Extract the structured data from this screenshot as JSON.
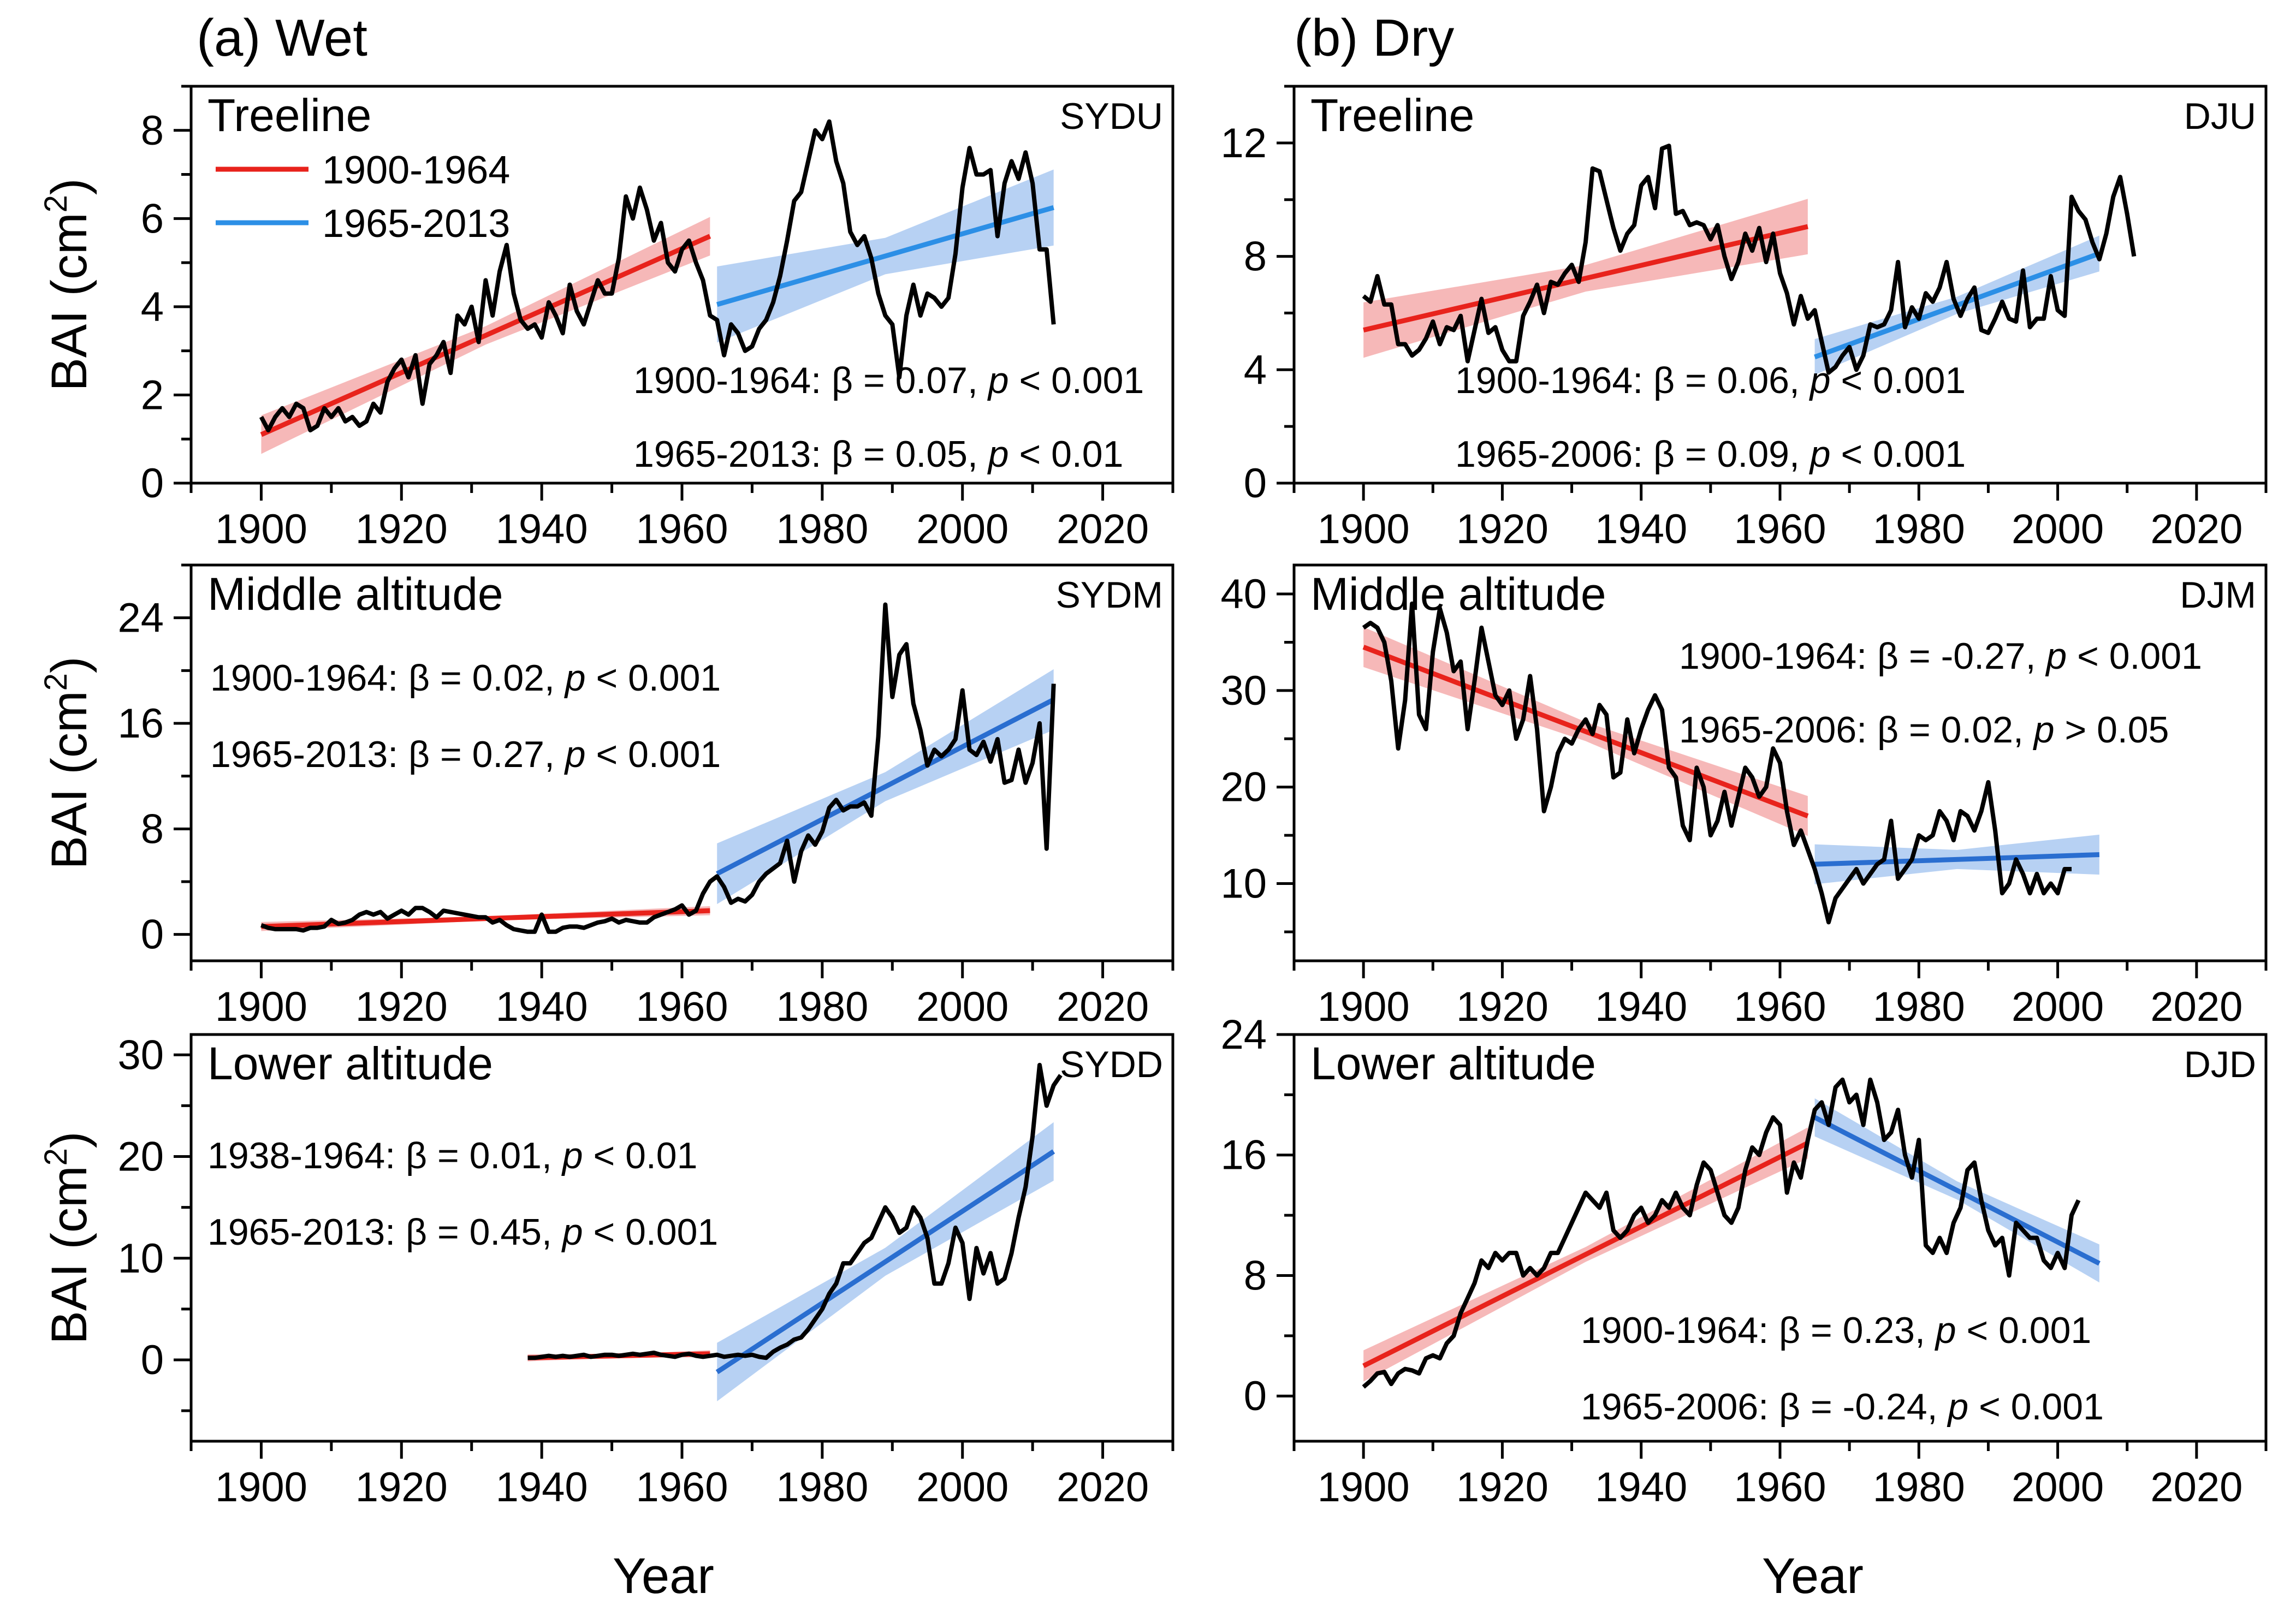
{
  "figure": {
    "title_wet": "(a) Wet",
    "title_dry": "(b) Dry",
    "ylabel_main": "BAI (cm",
    "ylabel_sup": "2",
    "ylabel_end": ")",
    "xlabel": "Year"
  },
  "legend": [
    {
      "label": "1900-1964",
      "color": "#e8231c"
    },
    {
      "label": "1965-2013",
      "color": "#2c8fe6"
    }
  ],
  "colors": {
    "early": "#e8231c",
    "late_light": "#2c8fe6",
    "late_dark": "#2a6ed0",
    "series": "#000000",
    "early_band": "#f3a0a0",
    "late_band": "#9fc1ef"
  },
  "chart_data": [
    {
      "type": "line",
      "panel": "wet-treeline",
      "subtitle": "Treeline",
      "code": "SYDU",
      "xlim": [
        1890,
        2030
      ],
      "ylim": [
        0,
        9
      ],
      "xticks": [
        1900,
        1920,
        1940,
        1960,
        1980,
        2000,
        2020
      ],
      "yticks": [
        0,
        2,
        4,
        6,
        8
      ],
      "xlabel": "",
      "ylabel": "BAI (cm2)",
      "series": [
        {
          "x_start": 1900,
          "values": [
            1.5,
            1.2,
            1.5,
            1.7,
            1.5,
            1.8,
            1.7,
            1.2,
            1.3,
            1.7,
            1.5,
            1.7,
            1.4,
            1.5,
            1.3,
            1.4,
            1.8,
            1.6,
            2.3,
            2.6,
            2.8,
            2.4,
            2.9,
            1.8,
            2.7,
            2.9,
            3.2,
            2.5,
            3.8,
            3.6,
            4.0,
            3.2,
            4.6,
            3.8,
            4.8,
            5.4,
            4.3,
            3.7,
            3.5,
            3.6,
            3.3,
            4.1,
            3.8,
            3.4,
            4.5,
            3.9,
            3.6,
            4.1,
            4.6,
            4.3,
            4.3,
            5.1,
            6.5,
            6.0,
            6.7,
            6.2,
            5.5,
            5.9,
            5.0,
            4.8,
            5.3,
            5.5,
            5.0,
            4.6,
            3.8,
            3.7,
            2.9,
            3.6,
            3.4,
            3.0,
            3.1,
            3.5,
            3.7,
            4.1,
            4.7,
            5.5,
            6.4,
            6.6,
            7.3,
            8.0,
            7.8,
            8.2,
            7.3,
            6.8,
            5.7,
            5.4,
            5.6,
            5.1,
            4.3,
            3.8,
            3.6,
            2.4,
            3.8,
            4.5,
            3.8,
            4.3,
            4.2,
            4.0,
            4.2,
            5.2,
            6.7,
            7.6,
            7.0,
            7.0,
            7.1,
            5.6,
            6.8,
            7.3,
            6.9,
            7.5,
            6.8,
            5.3,
            5.3,
            3.6
          ]
        }
      ],
      "fits": [
        {
          "period": "1900-1964",
          "x": [
            1900,
            1964
          ],
          "y": [
            1.1,
            5.6
          ],
          "band_halfwidth": 0.38
        },
        {
          "period": "1965-2013",
          "x": [
            1965,
            2013
          ],
          "y": [
            4.05,
            6.25
          ],
          "band_halfwidth": 0.75
        }
      ],
      "annotations": [
        {
          "period": "1900-1964",
          "beta": "β = 0.07, ",
          "p": "p",
          "rel": " < 0.001"
        },
        {
          "period": "1965-2013",
          "beta": "β = 0.05, ",
          "p": "p",
          "rel": " < 0.01"
        }
      ]
    },
    {
      "type": "line",
      "panel": "dry-treeline",
      "subtitle": "Treeline",
      "code": "DJU",
      "xlim": [
        1890,
        2030
      ],
      "ylim": [
        0,
        14
      ],
      "xticks": [
        1900,
        1920,
        1940,
        1960,
        1980,
        2000,
        2020
      ],
      "yticks": [
        0,
        4,
        8,
        12
      ],
      "xlabel": "",
      "ylabel": "",
      "series": [
        {
          "x_start": 1900,
          "values": [
            6.6,
            6.4,
            7.3,
            6.3,
            6.3,
            4.9,
            4.9,
            4.5,
            4.7,
            5.1,
            5.7,
            4.9,
            5.5,
            5.4,
            5.9,
            4.3,
            5.4,
            6.5,
            5.3,
            5.5,
            4.7,
            4.3,
            4.3,
            5.9,
            6.4,
            7.0,
            6.0,
            7.1,
            7.0,
            7.4,
            7.7,
            7.1,
            8.5,
            11.1,
            11.0,
            10.0,
            9.0,
            8.2,
            8.8,
            9.1,
            10.5,
            10.8,
            9.7,
            11.8,
            11.9,
            9.5,
            9.6,
            9.1,
            9.2,
            9.1,
            8.6,
            9.1,
            8.0,
            7.2,
            7.8,
            8.8,
            8.2,
            9.0,
            7.8,
            8.8,
            7.4,
            6.7,
            5.6,
            6.6,
            5.8,
            6.1,
            5.0,
            3.9,
            4.1,
            4.5,
            4.8,
            4.0,
            4.5,
            5.6,
            5.5,
            5.6,
            6.1,
            7.8,
            5.5,
            6.2,
            5.8,
            6.7,
            6.4,
            6.9,
            7.8,
            6.5,
            5.9,
            6.5,
            6.9,
            5.4,
            5.3,
            5.8,
            6.4,
            5.8,
            5.7,
            7.5,
            5.5,
            5.8,
            5.8,
            7.3,
            6.1,
            5.9,
            10.1,
            9.6,
            9.3,
            8.5,
            7.9,
            8.8,
            10.1,
            10.8,
            9.5,
            8.0
          ]
        }
      ],
      "fits": [
        {
          "period": "1900-1964",
          "x": [
            1900,
            1964
          ],
          "y": [
            5.4,
            9.05
          ],
          "band_halfwidth": 0.85
        },
        {
          "period": "1965-2006",
          "x": [
            1965,
            2006
          ],
          "y": [
            4.45,
            8.1
          ],
          "band_halfwidth": 0.55
        }
      ],
      "annotations": [
        {
          "period": "1900-1964",
          "beta": "β = 0.06, ",
          "p": "p",
          "rel": " < 0.001"
        },
        {
          "period": "1965-2006",
          "beta": "β = 0.09, ",
          "p": "p",
          "rel": " < 0.001"
        }
      ]
    },
    {
      "type": "line",
      "panel": "wet-middle",
      "subtitle": "Middle altitude",
      "code": "SYDM",
      "xlim": [
        1890,
        2030
      ],
      "ylim": [
        -2,
        28
      ],
      "xticks": [
        1900,
        1920,
        1940,
        1960,
        1980,
        2000,
        2020
      ],
      "yticks": [
        0,
        8,
        16,
        24
      ],
      "xlabel": "",
      "ylabel": "BAI (cm2)",
      "series": [
        {
          "x_start": 1900,
          "values": [
            0.7,
            0.5,
            0.4,
            0.4,
            0.4,
            0.4,
            0.3,
            0.5,
            0.5,
            0.6,
            1.1,
            0.8,
            0.9,
            1.1,
            1.5,
            1.7,
            1.5,
            1.7,
            1.2,
            1.5,
            1.8,
            1.5,
            2.0,
            2.0,
            1.7,
            1.3,
            1.8,
            1.7,
            1.6,
            1.5,
            1.4,
            1.3,
            1.3,
            0.9,
            1.1,
            0.7,
            0.4,
            0.3,
            0.2,
            0.2,
            1.5,
            0.2,
            0.2,
            0.5,
            0.6,
            0.6,
            0.5,
            0.7,
            0.9,
            1.0,
            1.2,
            0.9,
            1.1,
            1.0,
            0.9,
            0.9,
            1.3,
            1.5,
            1.7,
            1.9,
            2.2,
            1.5,
            1.8,
            3.1,
            4.0,
            4.4,
            3.6,
            2.4,
            2.7,
            2.5,
            3.0,
            4.0,
            4.6,
            5.0,
            5.4,
            7.1,
            4.0,
            6.3,
            7.5,
            6.8,
            7.8,
            9.6,
            10.2,
            9.4,
            9.7,
            9.7,
            10.0,
            9.0,
            15.0,
            25.0,
            18.0,
            21.2,
            22.0,
            17.5,
            15.5,
            12.8,
            14.0,
            13.5,
            14.0,
            14.8,
            18.5,
            14.0,
            13.6,
            14.6,
            13.1,
            14.8,
            11.5,
            11.7,
            14.0,
            11.5,
            13.0,
            16.0,
            6.5,
            19.0
          ]
        }
      ],
      "fits": [
        {
          "period": "1900-1964",
          "x": [
            1900,
            1964
          ],
          "y": [
            0.6,
            1.8
          ],
          "band_halfwidth": 0.3
        },
        {
          "period": "1965-2013",
          "x": [
            1965,
            2013
          ],
          "y": [
            4.6,
            17.8
          ],
          "band_halfwidth": 2.0
        }
      ],
      "annotations": [
        {
          "period": "1900-1964",
          "beta": "β = 0.02, ",
          "p": "p",
          "rel": " < 0.001"
        },
        {
          "period": "1965-2013",
          "beta": "β = 0.27, ",
          "p": "p",
          "rel": " < 0.001"
        }
      ]
    },
    {
      "type": "line",
      "panel": "dry-middle",
      "subtitle": "Middle altitude",
      "code": "DJM",
      "xlim": [
        1890,
        2030
      ],
      "ylim": [
        2,
        43
      ],
      "xticks": [
        1900,
        1920,
        1940,
        1960,
        1980,
        2000,
        2020
      ],
      "yticks": [
        10,
        20,
        30,
        40
      ],
      "xlabel": "",
      "ylabel": "",
      "series": [
        {
          "x_start": 1900,
          "values": [
            36.5,
            37.0,
            36.5,
            35.0,
            31.0,
            24.0,
            29.0,
            39.0,
            27.5,
            26.0,
            34.0,
            38.5,
            36.0,
            32.0,
            33.0,
            26.0,
            31.0,
            36.5,
            33.0,
            29.5,
            28.5,
            30.0,
            25.0,
            27.0,
            31.5,
            26.0,
            17.5,
            20.0,
            23.5,
            25.0,
            24.5,
            26.0,
            27.0,
            25.5,
            28.5,
            27.5,
            21.0,
            21.5,
            27.0,
            23.5,
            26.0,
            28.0,
            29.5,
            28.0,
            22.0,
            21.0,
            16.0,
            14.5,
            22.0,
            20.0,
            15.0,
            16.5,
            19.5,
            16.0,
            19.0,
            22.0,
            21.0,
            19.0,
            20.0,
            24.0,
            22.5,
            17.5,
            14.0,
            15.5,
            13.5,
            11.5,
            9.0,
            6.0,
            8.5,
            9.5,
            10.5,
            11.5,
            10.0,
            11.0,
            12.0,
            12.5,
            16.5,
            10.5,
            11.5,
            12.5,
            15.0,
            14.5,
            15.0,
            17.5,
            16.5,
            14.5,
            17.5,
            17.0,
            15.5,
            17.5,
            20.5,
            15.5,
            9.0,
            10.0,
            12.5,
            11.0,
            9.0,
            11.0,
            9.0,
            10.0,
            9.0,
            11.5,
            11.5
          ]
        }
      ],
      "fits": [
        {
          "period": "1900-1964",
          "x": [
            1900,
            1964
          ],
          "y": [
            34.5,
            17.0
          ],
          "band_halfwidth": 1.8
        },
        {
          "period": "1965-2006",
          "x": [
            1965,
            2006
          ],
          "y": [
            12.0,
            13.0
          ],
          "band_halfwidth": 1.8
        }
      ],
      "annotations": [
        {
          "period": "1900-1964",
          "beta": "β = -0.27, ",
          "p": "p",
          "rel": " < 0.001"
        },
        {
          "period": "1965-2006",
          "beta": "β = 0.02, ",
          "p": "p",
          "rel": " > 0.05"
        }
      ]
    },
    {
      "type": "line",
      "panel": "wet-lower",
      "subtitle": "Lower altitude",
      "code": "SYDD",
      "xlim": [
        1890,
        2030
      ],
      "ylim": [
        -8,
        32
      ],
      "xticks": [
        1900,
        1920,
        1940,
        1960,
        1980,
        2000,
        2020
      ],
      "yticks": [
        0,
        10,
        20,
        30
      ],
      "xlabel": "Year",
      "ylabel": "BAI (cm2)",
      "series": [
        {
          "x_start": 1938,
          "values": [
            0.2,
            0.2,
            0.3,
            0.4,
            0.3,
            0.4,
            0.3,
            0.4,
            0.5,
            0.3,
            0.4,
            0.5,
            0.5,
            0.4,
            0.5,
            0.6,
            0.5,
            0.6,
            0.7,
            0.5,
            0.4,
            0.3,
            0.5,
            0.6,
            0.4,
            0.3,
            0.4,
            0.5,
            0.3,
            0.4,
            0.5,
            0.4,
            0.5,
            0.3,
            0.2,
            0.8,
            1.2,
            1.5,
            2.0,
            2.2,
            3.0,
            4.0,
            5.0,
            6.5,
            7.5,
            9.5,
            9.5,
            10.5,
            11.5,
            12.0,
            13.5,
            15.0,
            14.0,
            12.5,
            13.0,
            15.0,
            14.0,
            12.0,
            7.5,
            7.5,
            9.5,
            13.0,
            11.5,
            6.0,
            11.0,
            8.5,
            10.5,
            7.5,
            8.0,
            10.5,
            14.0,
            17.0,
            22.0,
            29.0,
            25.0,
            27.0,
            28.0
          ]
        }
      ],
      "fits": [
        {
          "period": "1938-1964",
          "x": [
            1938,
            1964
          ],
          "y": [
            0.2,
            0.6
          ],
          "band_halfwidth": 0.3
        },
        {
          "period": "1965-2013",
          "x": [
            1965,
            2013
          ],
          "y": [
            -1.2,
            20.5
          ],
          "band_halfwidth": 2.5
        }
      ],
      "annotations": [
        {
          "period": "1938-1964",
          "beta": "β = 0.01, ",
          "p": "p",
          "rel": " < 0.01"
        },
        {
          "period": "1965-2013",
          "beta": "β = 0.45, ",
          "p": "p",
          "rel": " < 0.001"
        }
      ]
    },
    {
      "type": "line",
      "panel": "dry-lower",
      "subtitle": "Lower altitude",
      "code": "DJD",
      "xlim": [
        1890,
        2030
      ],
      "ylim": [
        -3,
        24
      ],
      "xticks": [
        1900,
        1920,
        1940,
        1960,
        1980,
        2000,
        2020
      ],
      "yticks": [
        0,
        8,
        16,
        24
      ],
      "xlabel": "Year",
      "ylabel": "",
      "series": [
        {
          "x_start": 1900,
          "values": [
            0.6,
            1.0,
            1.5,
            1.6,
            0.8,
            1.5,
            1.8,
            1.7,
            1.5,
            2.5,
            2.7,
            2.5,
            3.5,
            4.0,
            5.5,
            6.5,
            7.5,
            9.0,
            8.5,
            9.5,
            9.0,
            9.5,
            9.5,
            8.0,
            8.5,
            8.0,
            8.5,
            9.5,
            9.5,
            10.5,
            11.5,
            12.5,
            13.5,
            13.0,
            12.5,
            13.5,
            11.0,
            10.5,
            11.0,
            12.0,
            12.5,
            11.5,
            12.0,
            13.0,
            12.5,
            13.5,
            12.5,
            12.0,
            14.0,
            15.5,
            15.0,
            13.5,
            12.0,
            11.5,
            12.5,
            15.0,
            16.5,
            16.0,
            17.5,
            18.5,
            18.0,
            13.5,
            15.5,
            14.5,
            17.0,
            19.0,
            19.5,
            18.0,
            20.5,
            21.0,
            19.5,
            20.0,
            18.0,
            21.0,
            19.5,
            17.0,
            17.5,
            19.0,
            16.0,
            14.5,
            17.0,
            10.0,
            9.5,
            10.5,
            9.5,
            11.5,
            12.5,
            15.0,
            15.5,
            13.0,
            11.0,
            10.0,
            10.5,
            8.0,
            11.5,
            11.0,
            10.5,
            10.5,
            9.0,
            8.5,
            9.5,
            8.5,
            12.0,
            13.0
          ]
        }
      ],
      "fits": [
        {
          "period": "1900-1964",
          "x": [
            1900,
            1964
          ],
          "y": [
            2.0,
            16.8
          ],
          "band_halfwidth": 0.9
        },
        {
          "period": "1965-2006",
          "x": [
            1965,
            2006
          ],
          "y": [
            18.5,
            8.8
          ],
          "band_halfwidth": 1.1
        }
      ],
      "annotations": [
        {
          "period": "1900-1964",
          "beta": "β = 0.23, ",
          "p": "p",
          "rel": " < 0.001"
        },
        {
          "period": "1965-2006",
          "beta": "β = -0.24, ",
          "p": "p",
          "rel": " < 0.001"
        }
      ]
    }
  ]
}
